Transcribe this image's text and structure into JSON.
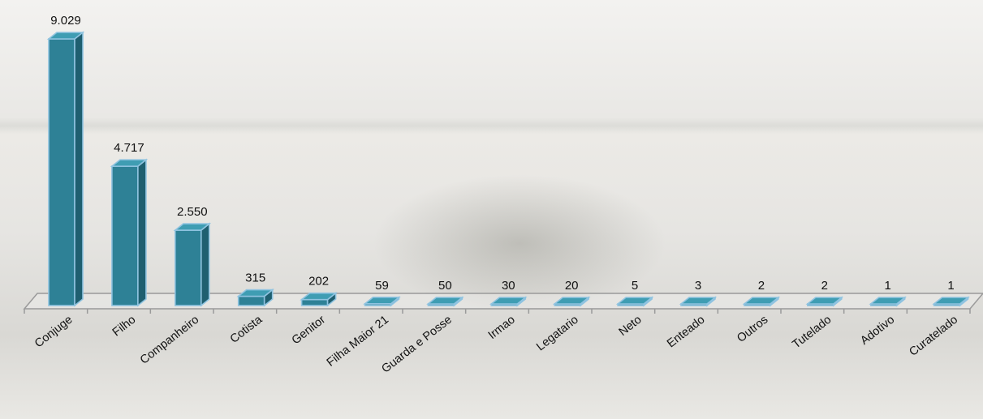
{
  "chart_data": {
    "type": "bar",
    "style": "3d-column",
    "categories": [
      "Conjuge",
      "Filho",
      "Companheiro",
      "Cotista",
      "Genitor",
      "Filha Maior 21",
      "Guarda e Posse",
      "Irmao",
      "Legatario",
      "Neto",
      "Enteado",
      "Outros",
      "Tutelado",
      "Adotivo",
      "Curatelado"
    ],
    "values": [
      9029,
      4717,
      2550,
      315,
      202,
      59,
      50,
      30,
      20,
      5,
      3,
      2,
      2,
      1,
      1
    ],
    "value_labels": [
      "9.029",
      "4.717",
      "2.550",
      "315",
      "202",
      "59",
      "50",
      "30",
      "20",
      "5",
      "3",
      "2",
      "2",
      "1",
      "1"
    ],
    "ylim": [
      0,
      9029
    ],
    "grid": false,
    "legend": "none",
    "colors": {
      "bar_front": "#2e8196",
      "bar_side": "#1f5f70",
      "bar_top": "#3f9db3",
      "bar_edge": "#8fc3e0",
      "floor": "#9a9a9a"
    }
  }
}
